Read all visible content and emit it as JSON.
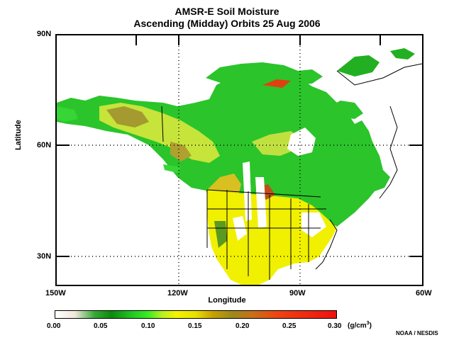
{
  "title_line1": "AMSR-E Soil Moisture",
  "title_line2": "Ascending (Midday) Orbits  25 Aug 2006",
  "axes": {
    "ylabel": "Latitude",
    "xlabel": "Longitude",
    "lat_ticks": [
      "90N",
      "60N",
      "30N"
    ],
    "lon_ticks": [
      "150W",
      "120W",
      "90W",
      "60W"
    ]
  },
  "colorbar": {
    "labels": [
      "0.00",
      "0.05",
      "0.10",
      "0.15",
      "0.20",
      "0.25",
      "0.30"
    ],
    "units_text": "(g/cm",
    "units_sup": "3",
    "units_close": ")"
  },
  "credit": "NOAA / NESDIS",
  "colors": {
    "dry_white": "#ffffff",
    "green_dark": "#0b8a0b",
    "green_bright": "#38ee22",
    "yellow": "#f3f300",
    "brown": "#9c8a1a",
    "red": "#f01010"
  }
}
